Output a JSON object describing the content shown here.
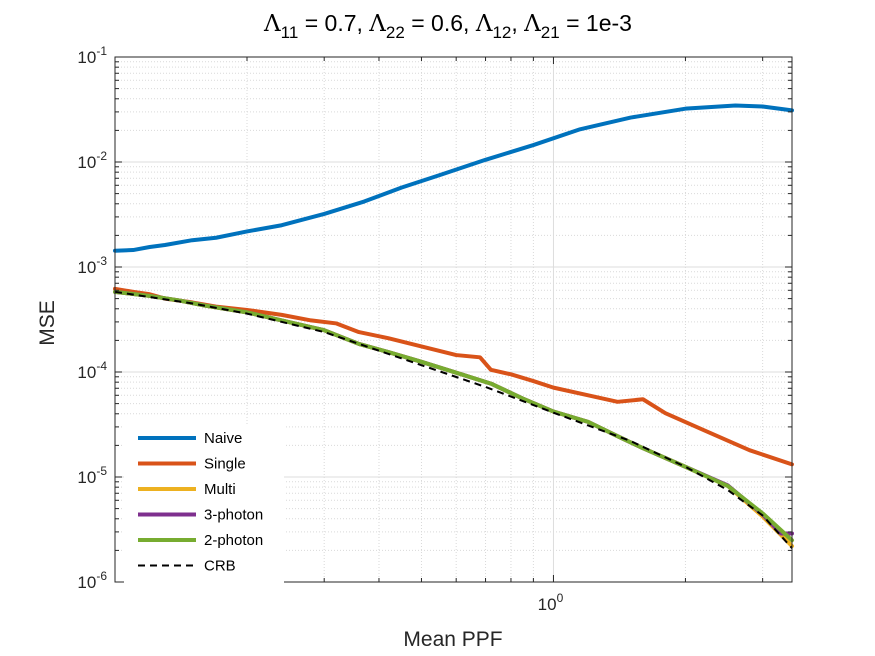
{
  "chart_data": {
    "type": "line",
    "title": {
      "parts": [
        {
          "t": "Λ",
          "greek": true
        },
        {
          "t": "11",
          "sub": true
        },
        {
          "t": " = 0.7, "
        },
        {
          "t": "Λ",
          "greek": true
        },
        {
          "t": "22",
          "sub": true
        },
        {
          "t": " = 0.6, "
        },
        {
          "t": "Λ",
          "greek": true
        },
        {
          "t": "12",
          "sub": true
        },
        {
          "t": ", "
        },
        {
          "t": "Λ",
          "greek": true
        },
        {
          "t": "21",
          "sub": true
        },
        {
          "t": " = 1e-3"
        }
      ]
    },
    "xlabel": "Mean PPF",
    "ylabel": "MSE",
    "xscale": "log",
    "yscale": "log",
    "xlim": [
      0.1,
      3.5
    ],
    "ylim": [
      1e-06,
      0.1
    ],
    "grid": true,
    "minor_grid": true,
    "legend_position": "bottom-left",
    "xticks": [
      {
        "base": "10",
        "exp": "0",
        "value": 1
      }
    ],
    "yticks": [
      {
        "base": "10",
        "exp": "-1",
        "value": 0.1
      },
      {
        "base": "10",
        "exp": "-2",
        "value": 0.01
      },
      {
        "base": "10",
        "exp": "-3",
        "value": 0.001
      },
      {
        "base": "10",
        "exp": "-4",
        "value": 0.0001
      },
      {
        "base": "10",
        "exp": "-5",
        "value": 1e-05
      },
      {
        "base": "10",
        "exp": "-6",
        "value": 1e-06
      }
    ],
    "series": [
      {
        "name": "Naive",
        "color": "#0072BD",
        "dash": "solid",
        "width": 4,
        "x": [
          0.1,
          0.11,
          0.12,
          0.13,
          0.15,
          0.17,
          0.2,
          0.24,
          0.3,
          0.37,
          0.45,
          0.55,
          0.7,
          0.9,
          1.15,
          1.5,
          2.0,
          2.6,
          3.0,
          3.5
        ],
        "y": [
          0.00143,
          0.00145,
          0.00155,
          0.00162,
          0.0018,
          0.0019,
          0.00218,
          0.0025,
          0.0032,
          0.0042,
          0.0057,
          0.0075,
          0.0105,
          0.0145,
          0.0205,
          0.0265,
          0.0322,
          0.0345,
          0.0338,
          0.031
        ]
      },
      {
        "name": "Single",
        "color": "#D95319",
        "dash": "solid",
        "width": 4,
        "x": [
          0.1,
          0.11,
          0.12,
          0.13,
          0.15,
          0.17,
          0.2,
          0.24,
          0.28,
          0.32,
          0.36,
          0.42,
          0.5,
          0.6,
          0.68,
          0.72,
          0.8,
          0.9,
          1.0,
          1.2,
          1.4,
          1.6,
          1.8,
          2.2,
          2.8,
          3.5
        ],
        "y": [
          0.00062,
          0.00058,
          0.00055,
          0.0005,
          0.00046,
          0.00042,
          0.00039,
          0.00035,
          0.00031,
          0.00029,
          0.00024,
          0.00021,
          0.000175,
          0.000145,
          0.000138,
          0.000105,
          9.5e-05,
          8.2e-05,
          7.1e-05,
          6e-05,
          5.2e-05,
          5.5e-05,
          4.05e-05,
          2.8e-05,
          1.8e-05,
          1.32e-05
        ]
      },
      {
        "name": "Multi",
        "color": "#EDB120",
        "dash": "solid",
        "width": 4,
        "x": [
          0.1,
          0.12,
          0.14,
          0.16,
          0.2,
          0.24,
          0.3,
          0.36,
          0.42,
          0.5,
          0.6,
          0.72,
          0.85,
          1.0,
          1.2,
          1.4,
          1.6,
          2.0,
          2.5,
          3.0,
          3.5
        ],
        "y": [
          0.00058,
          0.00053,
          0.00048,
          0.00043,
          0.00037,
          0.00031,
          0.00025,
          0.000185,
          0.000155,
          0.000125,
          9.85e-05,
          7.75e-05,
          5.6e-05,
          4.2e-05,
          3.35e-05,
          2.45e-05,
          1.88e-05,
          1.25e-05,
          8.2e-06,
          4.2e-06,
          2.2e-06
        ]
      },
      {
        "name": "3-photon",
        "color": "#7E2F8E",
        "dash": "solid",
        "width": 4,
        "x": [
          0.1,
          0.12,
          0.14,
          0.16,
          0.2,
          0.24,
          0.3,
          0.36,
          0.42,
          0.5,
          0.6,
          0.72,
          0.85,
          1.0,
          1.2,
          1.4,
          1.6,
          2.0,
          2.5,
          3.0,
          3.3,
          3.5
        ],
        "y": [
          0.00058,
          0.00053,
          0.00048,
          0.00043,
          0.00037,
          0.00031,
          0.00025,
          0.000185,
          0.000155,
          0.000125,
          9.85e-05,
          7.75e-05,
          5.6e-05,
          4.2e-05,
          3.35e-05,
          2.45e-05,
          1.88e-05,
          1.25e-05,
          8.3e-06,
          4.4e-06,
          2.9e-06,
          2.9e-06
        ]
      },
      {
        "name": "2-photon",
        "color": "#77AC30",
        "dash": "solid",
        "width": 4,
        "x": [
          0.1,
          0.12,
          0.14,
          0.16,
          0.2,
          0.24,
          0.3,
          0.36,
          0.42,
          0.5,
          0.6,
          0.72,
          0.85,
          1.0,
          1.2,
          1.4,
          1.6,
          2.0,
          2.5,
          3.0,
          3.5
        ],
        "y": [
          0.00058,
          0.00053,
          0.00048,
          0.00043,
          0.00037,
          0.00031,
          0.00025,
          0.000185,
          0.000155,
          0.000125,
          9.85e-05,
          7.75e-05,
          5.6e-05,
          4.2e-05,
          3.35e-05,
          2.45e-05,
          1.88e-05,
          1.25e-05,
          8.2e-06,
          4.5e-06,
          2.5e-06
        ]
      },
      {
        "name": "CRB",
        "color": "#000000",
        "dash": "dashed",
        "width": 2,
        "x": [
          0.1,
          0.15,
          0.2,
          0.3,
          0.45,
          0.7,
          1.0,
          1.5,
          2.0,
          2.5,
          3.0,
          3.5
        ],
        "y": [
          0.00058,
          0.00045,
          0.00036,
          0.00024,
          0.000135,
          7.2e-05,
          4.1e-05,
          2.2e-05,
          1.25e-05,
          7.5e-06,
          4.3e-06,
          2.1e-06
        ]
      }
    ]
  }
}
